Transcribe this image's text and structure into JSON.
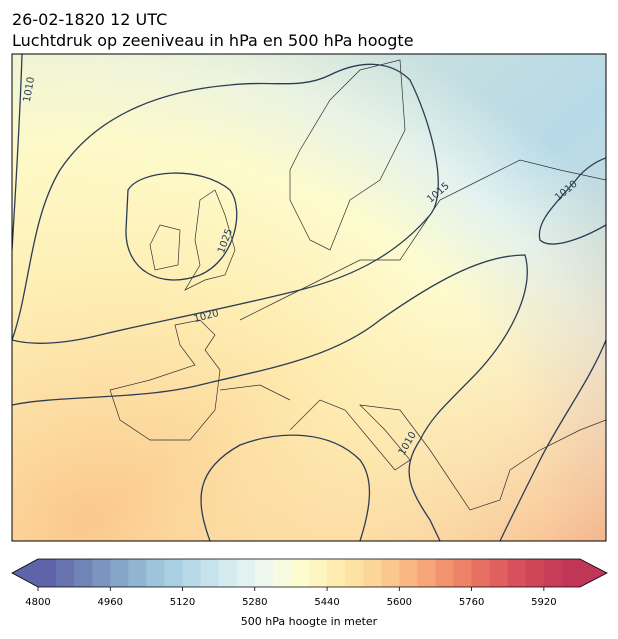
{
  "title": {
    "line1": "26-02-1820 12 UTC",
    "line2": "Luchtdruk op zeeniveau in hPa en 500 hPa hoogte"
  },
  "map": {
    "isobar_labels": [
      "1010",
      "1025",
      "1020",
      "1015",
      "1010",
      "1010"
    ]
  },
  "colorbar": {
    "label": "500 hPa hoogte in meter",
    "lim": [
      4800,
      6000
    ],
    "ticks": [
      4800,
      4960,
      5120,
      5280,
      5440,
      5600,
      5760,
      5920
    ],
    "colors": [
      "#5f64a8",
      "#6874b0",
      "#7084b8",
      "#7b95c0",
      "#86a6c8",
      "#91b5d0",
      "#9ec4d9",
      "#aacfe2",
      "#b7d9e8",
      "#c6e3ec",
      "#d4ebf0",
      "#e2f2f1",
      "#eef7ee",
      "#f7fbe2",
      "#fdfcd0",
      "#fef6c0",
      "#feecb0",
      "#fde2a4",
      "#fcd598",
      "#fbc78c",
      "#f9b781",
      "#f6a678",
      "#f29370",
      "#ed8268",
      "#e77062",
      "#e0605f",
      "#d8505c",
      "#cf4659",
      "#c73d58",
      "#c03656"
    ]
  }
}
